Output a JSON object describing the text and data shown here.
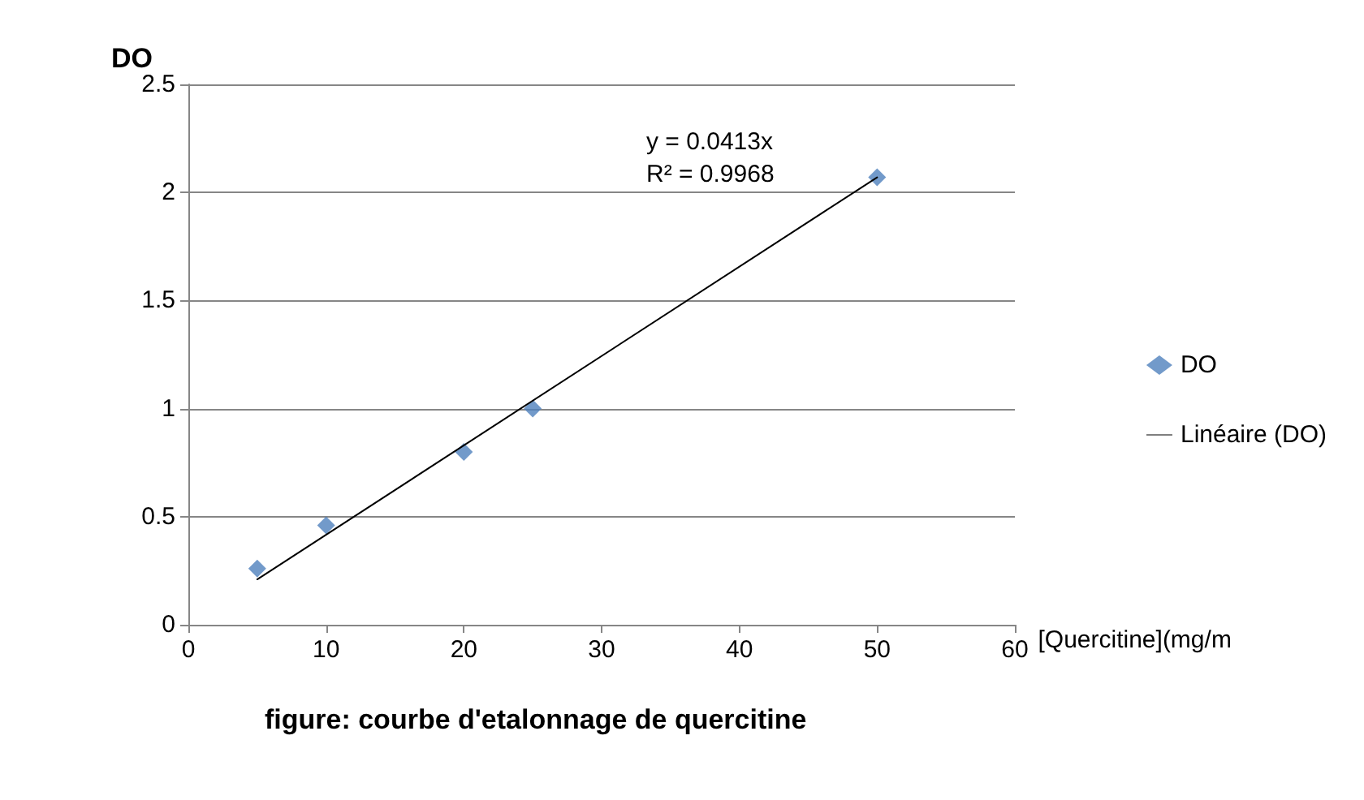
{
  "chart_data": {
    "type": "scatter",
    "title": "figure: courbe d'etalonnage de quercitine",
    "xlabel": "[Quercitine](mg/m",
    "ylabel": "DO",
    "annotations": [
      "y = 0.0413x",
      "R² = 0.9968"
    ],
    "x": [
      5,
      10,
      20,
      25,
      50
    ],
    "series": [
      {
        "name": "DO",
        "color": "#4f81bd",
        "values": [
          0.26,
          0.46,
          0.8,
          1.0,
          2.07
        ],
        "marker": "diamond"
      },
      {
        "name": "Linéaire (DO)",
        "type": "line",
        "color": "#000000",
        "x": [
          5,
          50
        ],
        "values": [
          0.21,
          2.07
        ],
        "marker": "none",
        "line_style": "solid"
      }
    ],
    "xlim": [
      0,
      60
    ],
    "xticks": [
      0,
      10,
      20,
      30,
      40,
      50,
      60
    ],
    "ylim": [
      0,
      2.5
    ],
    "yticks": [
      0,
      0.5,
      1,
      1.5,
      2,
      2.5
    ],
    "grid": "y",
    "legend": "right"
  }
}
